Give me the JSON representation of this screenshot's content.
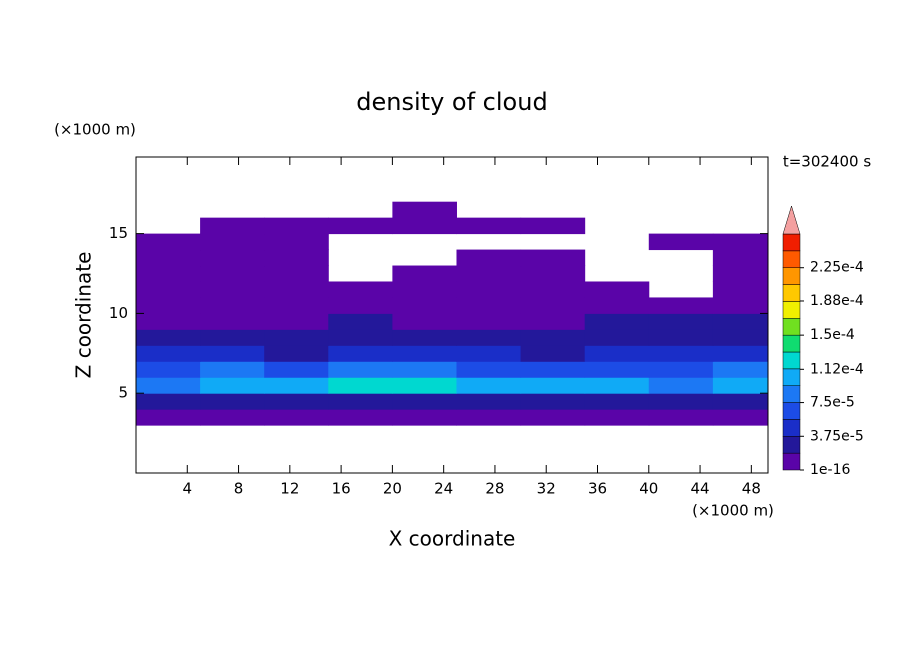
{
  "chart_data": {
    "type": "contour",
    "title": "density of cloud",
    "x_label": "X coordinate",
    "y_label": "Z coordinate",
    "x_unit": "(×1000 m)",
    "y_unit": "(×1000 m)",
    "time_label": "t=302400 s",
    "xlim": [
      0,
      49.3
    ],
    "ylim": [
      0,
      19.8
    ],
    "xticks": [
      4,
      8,
      12,
      16,
      20,
      24,
      28,
      32,
      36,
      40,
      44,
      48
    ],
    "yticks": [
      5,
      10,
      15
    ],
    "x": [
      2.5,
      7.5,
      12.5,
      17.5,
      22.5,
      27.5,
      32.5,
      37.5,
      42.5,
      47.5
    ],
    "y": [
      3.5,
      4.5,
      5.5,
      6.5,
      7.5,
      8.5,
      9.5,
      10.5,
      11.5,
      12.5,
      13.5,
      14.5,
      15.5,
      16.5
    ],
    "z": [
      [
        5e-06,
        5e-06,
        5e-06,
        5e-06,
        5e-06,
        5e-06,
        5e-06,
        5e-06,
        5e-06,
        5e-06
      ],
      [
        3e-05,
        3.5e-05,
        3e-05,
        3e-05,
        3.5e-05,
        3e-05,
        3e-05,
        3.5e-05,
        3e-05,
        3.5e-05
      ],
      [
        9e-05,
        0.0001,
        0.00011,
        0.00012,
        0.00012,
        0.0001,
        0.00011,
        0.0001,
        9e-05,
        0.00011
      ],
      [
        7e-05,
        7.5e-05,
        7e-05,
        8e-05,
        8e-05,
        7e-05,
        7e-05,
        7e-05,
        6.5e-05,
        8e-05
      ],
      [
        4e-05,
        4e-05,
        3.5e-05,
        4.5e-05,
        4e-05,
        4e-05,
        3.5e-05,
        4e-05,
        4e-05,
        4.5e-05
      ],
      [
        2.5e-05,
        2e-05,
        2.2e-05,
        2.8e-05,
        2.5e-05,
        2.2e-05,
        2.5e-05,
        2.8e-05,
        2.5e-05,
        3e-05
      ],
      [
        1.5e-05,
        1.2e-05,
        1.5e-05,
        2e-05,
        1.5e-05,
        1.2e-05,
        1.5e-05,
        2e-05,
        2e-05,
        2.2e-05
      ],
      [
        1e-05,
        1e-05,
        1.2e-05,
        1.5e-05,
        1.2e-05,
        1e-05,
        1.2e-05,
        1.5e-05,
        1e-05,
        1.2e-05
      ],
      [
        8e-06,
        1e-05,
        8e-06,
        1e-05,
        8e-06,
        8e-06,
        1e-05,
        8e-06,
        null,
        8e-06
      ],
      [
        5e-06,
        5e-06,
        5e-06,
        null,
        5e-06,
        5e-06,
        5e-06,
        null,
        null,
        5e-06
      ],
      [
        3e-06,
        3e-06,
        3e-06,
        null,
        null,
        3e-06,
        3e-06,
        null,
        null,
        3e-06
      ],
      [
        3e-06,
        3e-06,
        3e-06,
        null,
        null,
        null,
        null,
        null,
        3e-06,
        3e-06
      ],
      [
        null,
        3e-06,
        3e-06,
        3e-06,
        3e-06,
        3e-06,
        3e-06,
        null,
        null,
        null
      ],
      [
        null,
        null,
        null,
        null,
        3e-06,
        null,
        null,
        null,
        null,
        null
      ]
    ],
    "levels": [
      1e-16,
      1.875e-05,
      3.75e-05,
      5.625e-05,
      7.5e-05,
      9.375e-05,
      0.0001125,
      0.00013125,
      0.00015,
      0.00016875,
      0.0001875,
      0.00020625,
      0.000225,
      0.00024375
    ],
    "colors": [
      "#5a04a8",
      "#23189a",
      "#1a2ec8",
      "#1c4ce6",
      "#1c78f4",
      "#10aaf6",
      "#00d8d0",
      "#10dc70",
      "#70e020",
      "#f0f000",
      "#ffc800",
      "#ff9600",
      "#ff5a00",
      "#f01e00"
    ],
    "extend_color": "#f4a0a0",
    "colorbar_lim": [
      1e-16,
      0.0002625
    ],
    "colorbar_ticks": [
      {
        "value": 1e-16,
        "label": "1e-16"
      },
      {
        "value": 3.75e-05,
        "label": "3.75e-5"
      },
      {
        "value": 7.5e-05,
        "label": "7.5e-5"
      },
      {
        "value": 0.000112,
        "label": "1.12e-4"
      },
      {
        "value": 0.00015,
        "label": "1.5e-4"
      },
      {
        "value": 0.000188,
        "label": "1.88e-4"
      },
      {
        "value": 0.000225,
        "label": "2.25e-4"
      }
    ]
  }
}
